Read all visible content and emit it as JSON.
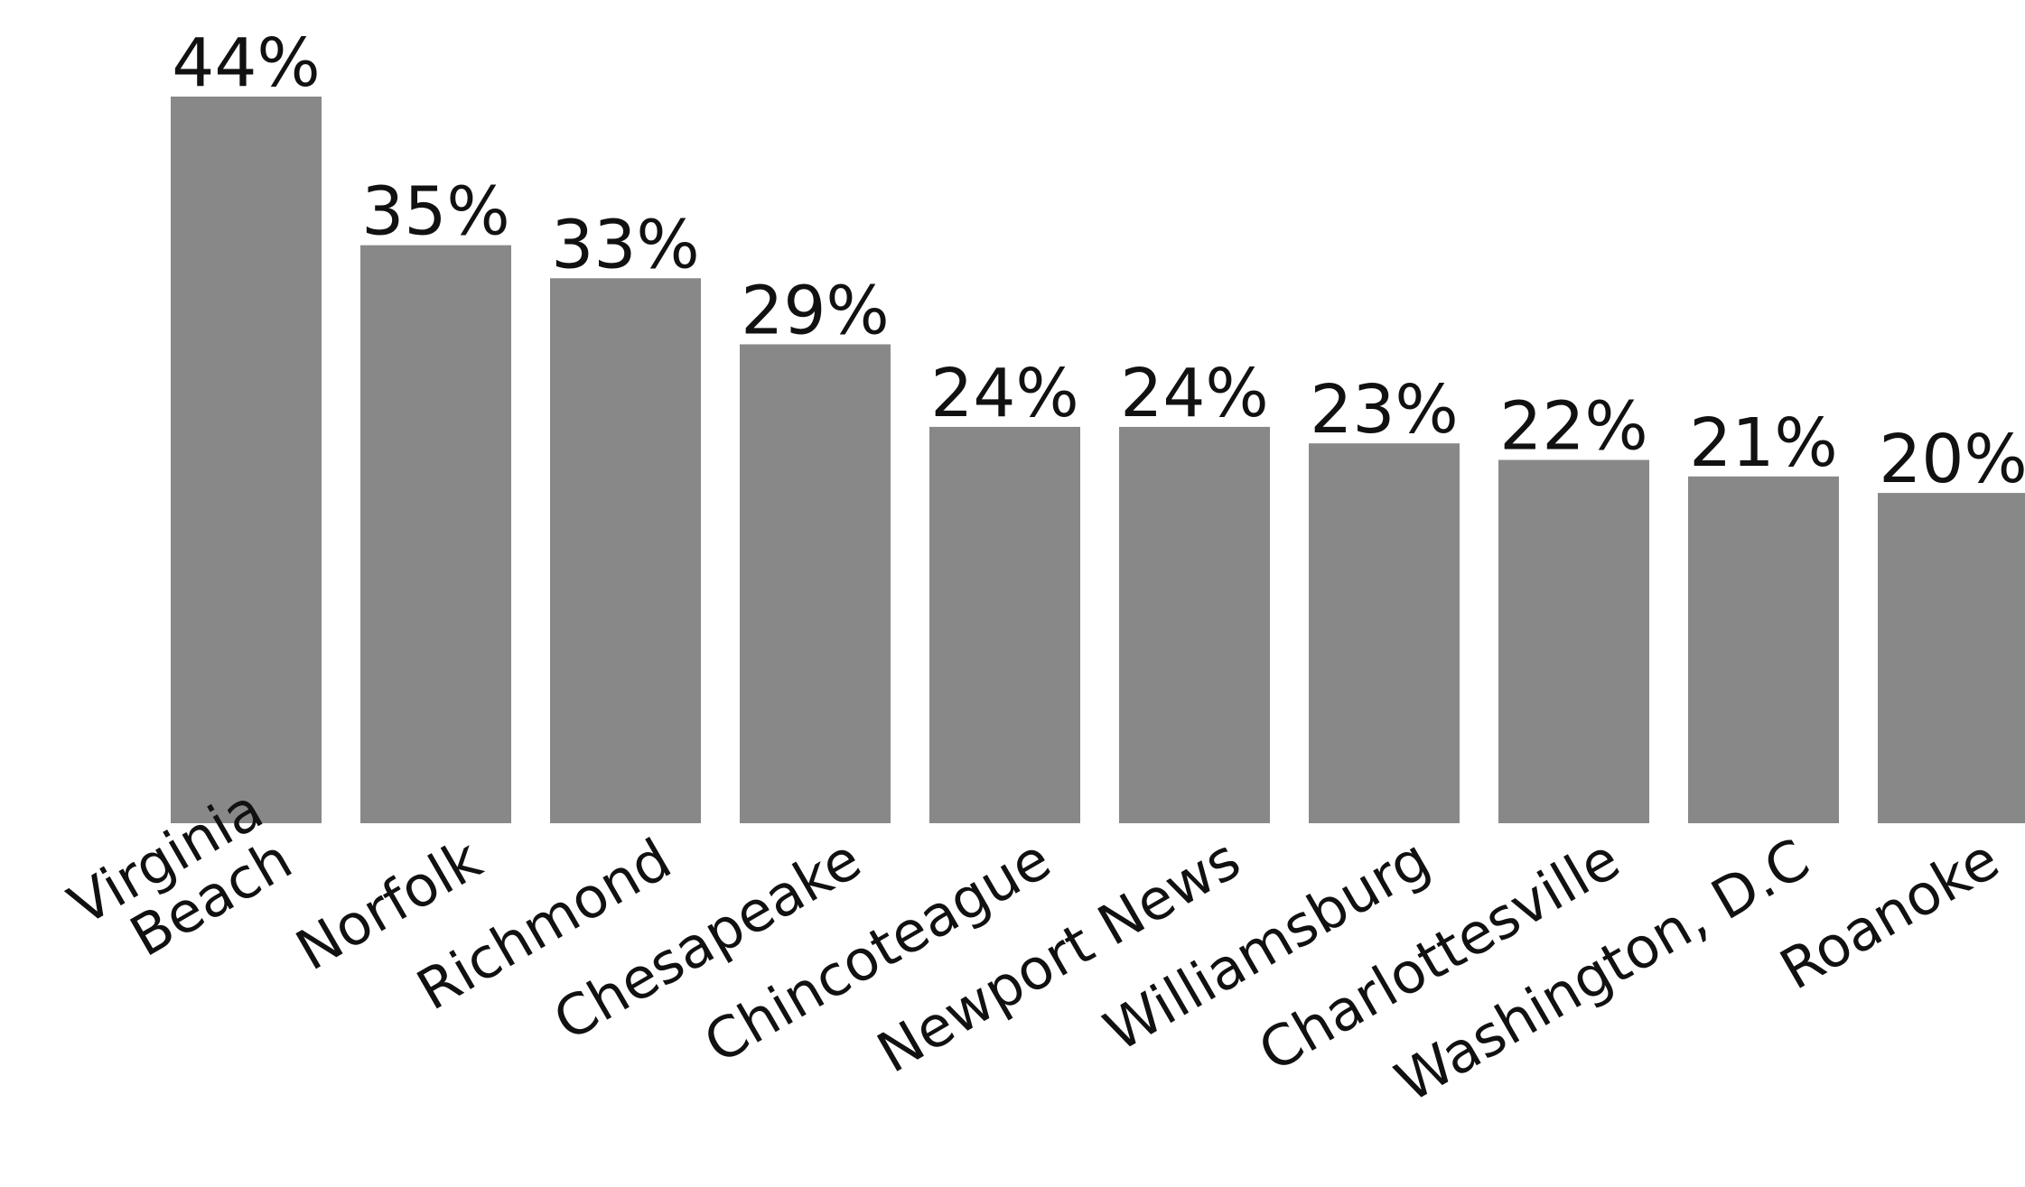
{
  "chart_data": {
    "type": "bar",
    "categories": [
      [
        "Virginia",
        "Beach"
      ],
      [
        "Norfolk"
      ],
      [
        "Richmond"
      ],
      [
        "Chesapeake"
      ],
      [
        "Chincoteague"
      ],
      [
        "Newport News"
      ],
      [
        "Williamsburg"
      ],
      [
        "Charlottesville"
      ],
      [
        "Washington, D.C"
      ],
      [
        "Roanoke"
      ]
    ],
    "values": [
      44,
      35,
      33,
      29,
      24,
      24,
      23,
      22,
      21,
      20
    ],
    "value_labels": [
      "44%",
      "35%",
      "33%",
      "29%",
      "24%",
      "24%",
      "23%",
      "22%",
      "21%",
      "20%"
    ],
    "title": "",
    "xlabel": "",
    "ylabel": "",
    "ylim": [
      0,
      44
    ],
    "grid": false,
    "legend": "none",
    "bar_color": "#888888",
    "text_color": "#111111",
    "background": "#ffffff"
  }
}
